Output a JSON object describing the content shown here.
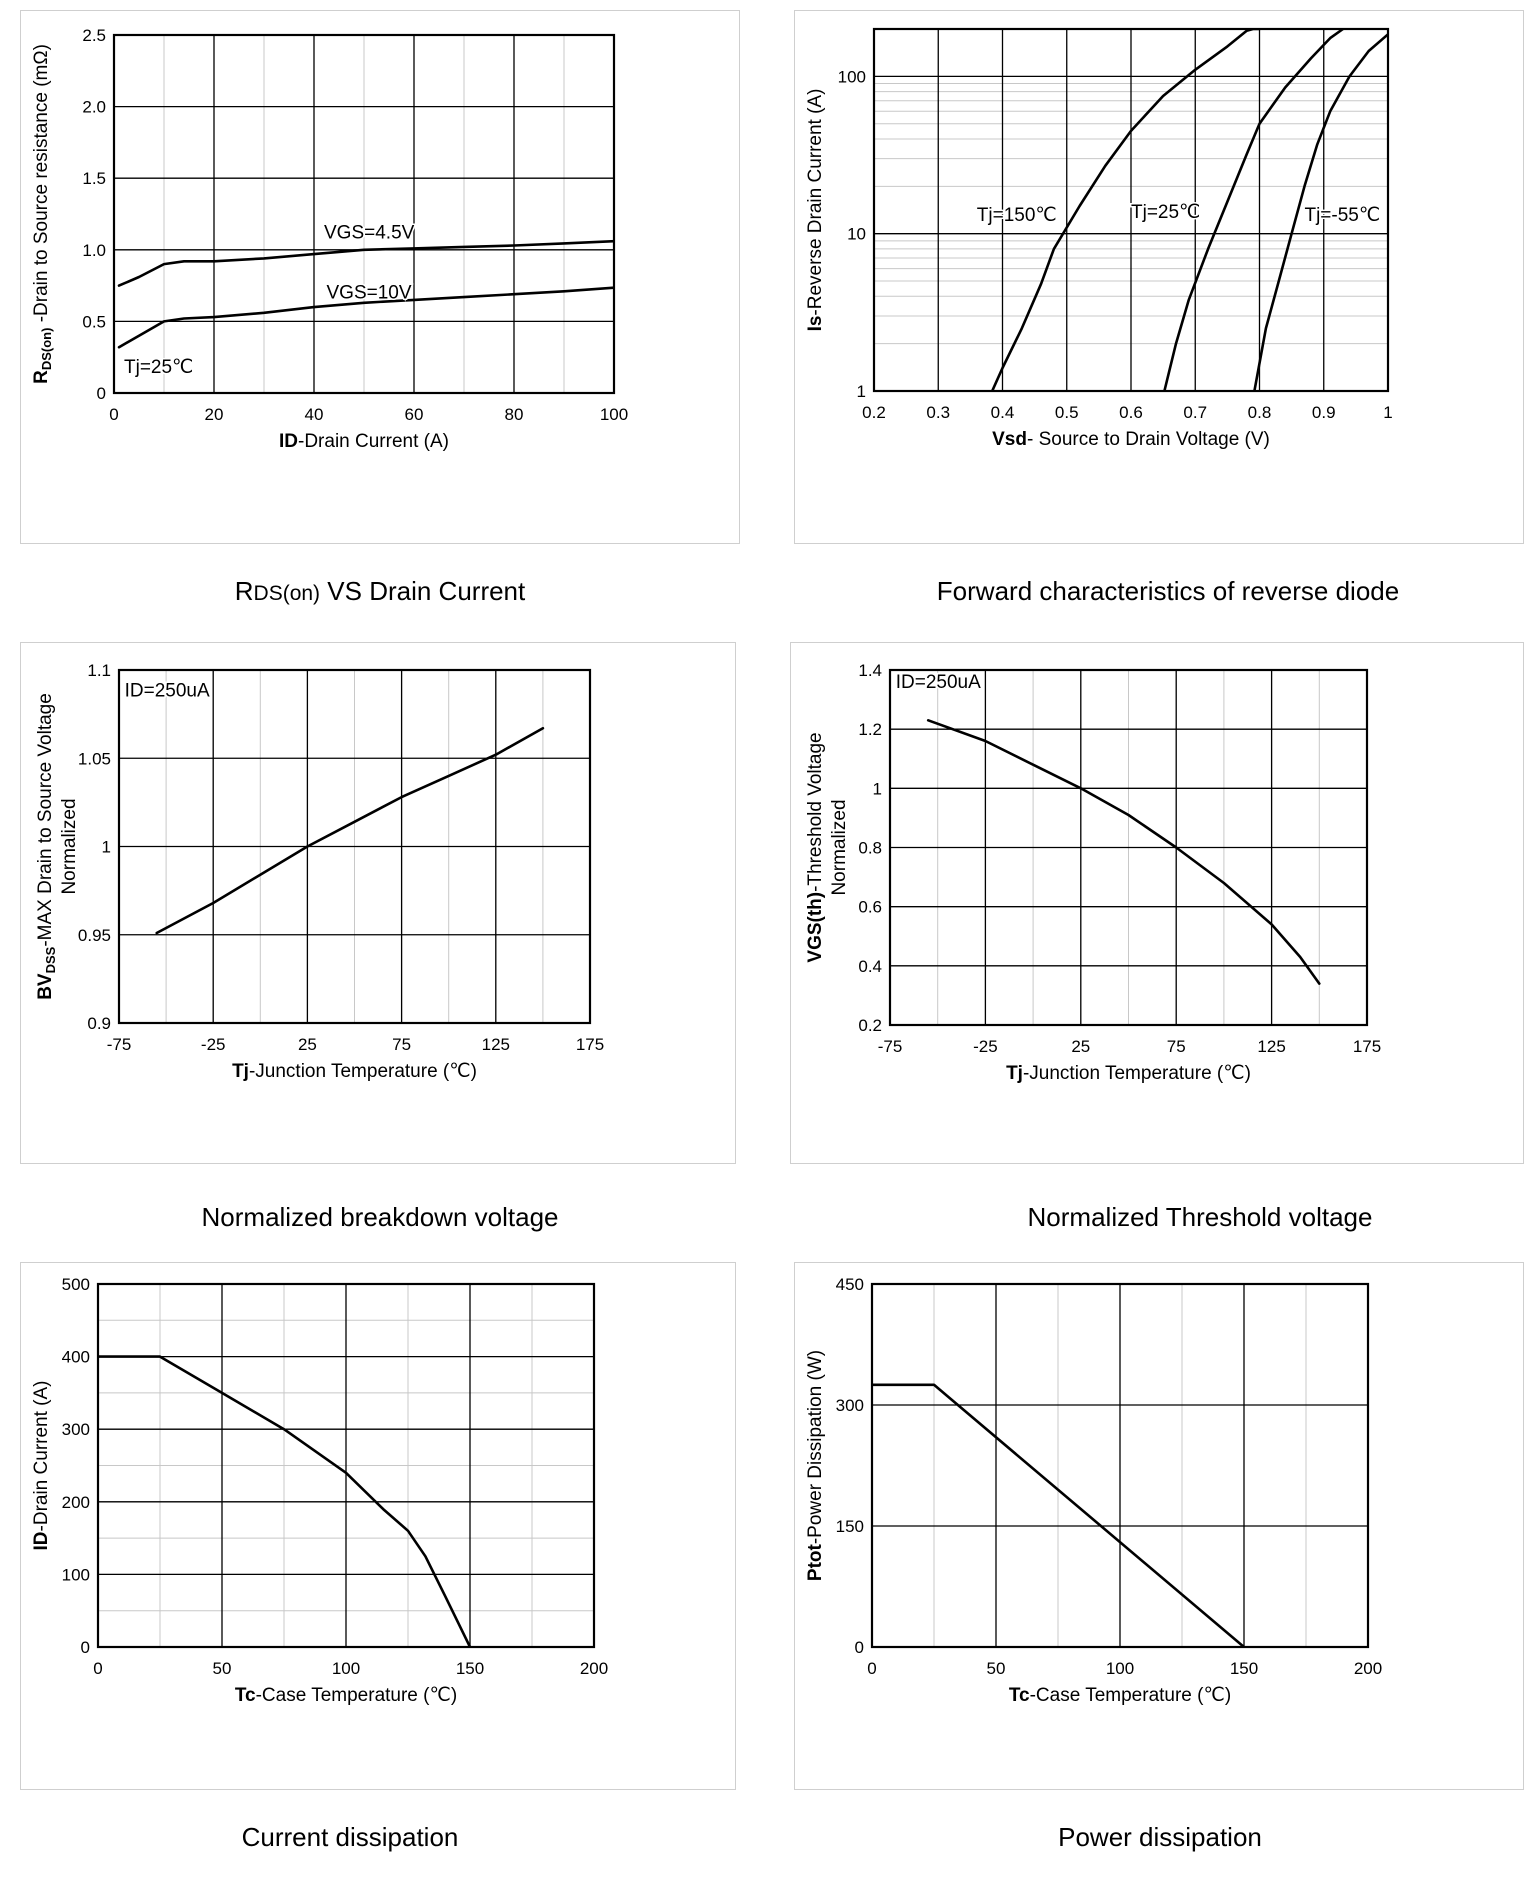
{
  "charts": [
    {
      "id": "rdson",
      "caption": "RDS(on) VS Drain Current",
      "caption_main": "R",
      "caption_sub": "DS(on)",
      "caption_rest": " VS Drain Current",
      "chart_data": {
        "type": "line",
        "xlabel": "ID-Drain Current (A)",
        "xlabel_bold": "ID",
        "xlabel_rest": "-Drain Current (A)",
        "ylabel": "RDS(on) -Drain to Source resistance (mΩ)",
        "ylabel_bold": "R",
        "ylabel_sub": "DS(on)",
        "ylabel_rest": " -Drain to Source resistance (mΩ)",
        "xlim": [
          0,
          100
        ],
        "ylim": [
          0,
          2.5
        ],
        "xticks": [
          0,
          20,
          40,
          60,
          80,
          100
        ],
        "xtick_labels": [
          "0",
          "20",
          "40",
          "60",
          "80",
          "100"
        ],
        "yticks": [
          0,
          0.5,
          1.0,
          1.5,
          2.0,
          2.5
        ],
        "ytick_labels": [
          "0",
          "0.5",
          "1.0",
          "1.5",
          "2.0",
          "2.5"
        ],
        "minor_x": 10,
        "series": [
          {
            "name": "VGS=4.5V",
            "x": [
              1,
              5,
              10,
              14,
              20,
              30,
              40,
              50,
              60,
              70,
              80,
              90,
              100
            ],
            "y": [
              0.75,
              0.81,
              0.9,
              0.92,
              0.92,
              0.94,
              0.97,
              1.0,
              1.01,
              1.02,
              1.03,
              1.045,
              1.06
            ]
          },
          {
            "name": "VGS=10V",
            "x": [
              1,
              5,
              10,
              14,
              20,
              30,
              40,
              50,
              60,
              70,
              80,
              90,
              100
            ],
            "y": [
              0.32,
              0.4,
              0.5,
              0.52,
              0.53,
              0.56,
              0.6,
              0.63,
              0.65,
              0.67,
              0.69,
              0.71,
              0.735
            ]
          }
        ],
        "annotations": [
          {
            "text": "VGS=4.5V",
            "x": 42,
            "y": 1.08
          },
          {
            "text": "VGS=10V",
            "x": 42.5,
            "y": 0.66
          },
          {
            "text": "Tj=25℃",
            "x": 2,
            "y": 0.14
          }
        ]
      }
    },
    {
      "id": "diode",
      "caption": "Forward characteristics of reverse diode",
      "chart_data": {
        "type": "line",
        "yscale": "log",
        "xlabel": "Vsd- Source to Drain Voltage (V)",
        "xlabel_bold": "Vsd",
        "xlabel_rest": "- Source to Drain Voltage (V)",
        "ylabel": "Is-Reverse Drain Current (A)",
        "ylabel_bold": "Is",
        "ylabel_rest": "-Reverse  Drain Current (A)",
        "xlim": [
          0.2,
          1.0
        ],
        "ylim": [
          1,
          200
        ],
        "xticks": [
          0.2,
          0.3,
          0.4,
          0.5,
          0.6,
          0.7,
          0.8,
          0.9,
          1.0
        ],
        "xtick_labels": [
          "0.2",
          "0.3",
          "0.4",
          "0.5",
          "0.6",
          "0.7",
          "0.8",
          "0.9",
          "1"
        ],
        "yticks": [
          1,
          10,
          100
        ],
        "ytick_labels": [
          "1",
          "10",
          "100"
        ],
        "series": [
          {
            "name": "Tj=150℃",
            "x": [
              0.384,
              0.4,
              0.43,
              0.46,
              0.48,
              0.52,
              0.56,
              0.6,
              0.65,
              0.7,
              0.75,
              0.78,
              0.79,
              0.8
            ],
            "y": [
              1,
              1.4,
              2.5,
              4.8,
              8,
              15,
              27,
              45,
              75,
              110,
              155,
              195,
              200,
              200
            ]
          },
          {
            "name": "Tj=25℃",
            "x": [
              0.652,
              0.67,
              0.69,
              0.72,
              0.75,
              0.78,
              0.8,
              0.84,
              0.88,
              0.91,
              0.93
            ],
            "y": [
              1,
              2,
              3.8,
              8,
              16,
              32,
              50,
              85,
              130,
              175,
              200
            ]
          },
          {
            "name": "Tj=-55℃",
            "x": [
              0.792,
              0.81,
              0.83,
              0.85,
              0.87,
              0.89,
              0.91,
              0.94,
              0.97,
              1.0
            ],
            "y": [
              1,
              2.5,
              5,
              10,
              20,
              37,
              60,
              100,
              145,
              185
            ]
          }
        ],
        "annotations": [
          {
            "text": "Tj=150℃",
            "x": 0.36,
            "y": 12
          },
          {
            "text": "Tj=25℃",
            "x": 0.6,
            "y": 12.6
          },
          {
            "text": "Tj=-55℃",
            "x": 0.87,
            "y": 12
          }
        ]
      }
    },
    {
      "id": "bvdss",
      "caption": "Normalized breakdown voltage",
      "chart_data": {
        "type": "line",
        "xlabel": "Tj-Junction Temperature (℃)",
        "xlabel_bold": "Tj",
        "xlabel_rest": "-Junction  Temperature  (℃)",
        "ylabel": "BVDSS-MAX Drain to Source Voltage Normalized",
        "ylabel_bold": "BV",
        "ylabel_sub": "DSS",
        "ylabel_rest": "-MAX Drain to Source Voltage",
        "ylabel_line2": "Normalized",
        "xlim": [
          -75,
          175
        ],
        "ylim": [
          0.9,
          1.1
        ],
        "xticks": [
          -75,
          -25,
          25,
          75,
          125,
          175
        ],
        "xtick_labels": [
          "-75",
          "-25",
          "25",
          "75",
          "125",
          "175"
        ],
        "yticks": [
          0.9,
          0.95,
          1.0,
          1.05,
          1.1
        ],
        "ytick_labels": [
          "0.9",
          "0.95",
          "1",
          "1.05",
          "1.1"
        ],
        "minor_x": 25,
        "series": [
          {
            "name": "BVDSS",
            "x": [
              -55,
              -25,
              0,
              25,
              50,
              75,
              100,
              125,
              150
            ],
            "y": [
              0.951,
              0.968,
              0.984,
              1.0,
              1.014,
              1.028,
              1.04,
              1.052,
              1.067
            ]
          }
        ],
        "annotations": [
          {
            "text": "ID=250uA",
            "x": -72,
            "y": 1.085
          }
        ]
      }
    },
    {
      "id": "vth",
      "caption": "Normalized Threshold voltage",
      "chart_data": {
        "type": "line",
        "xlabel": "Tj-Junction Temperature (℃)",
        "xlabel_bold": "Tj",
        "xlabel_rest": "-Junction  Temperature  (℃)",
        "ylabel": "VGS(th)-Threshold Voltage Normalized",
        "ylabel_bold": "VGS(th)",
        "ylabel_rest": "-Threshold  Voltage",
        "ylabel_line2": "Normalized",
        "xlim": [
          -75,
          175
        ],
        "ylim": [
          0.2,
          1.4
        ],
        "xticks": [
          -75,
          -25,
          25,
          75,
          125,
          175
        ],
        "xtick_labels": [
          "-75",
          "-25",
          "25",
          "75",
          "125",
          "175"
        ],
        "yticks": [
          0.2,
          0.4,
          0.6,
          0.8,
          1.0,
          1.2,
          1.4
        ],
        "ytick_labels": [
          "0.2",
          "0.4",
          "0.6",
          "0.8",
          "1",
          "1.2",
          "1.4"
        ],
        "minor_x": 25,
        "series": [
          {
            "name": "VGS(th)",
            "x": [
              -55,
              -25,
              0,
              25,
              50,
              75,
              100,
              125,
              140,
              150
            ],
            "y": [
              1.23,
              1.16,
              1.08,
              1.0,
              0.91,
              0.8,
              0.68,
              0.54,
              0.43,
              0.34
            ]
          }
        ],
        "annotations": [
          {
            "text": "ID=250uA",
            "x": -72,
            "y": 1.34
          }
        ]
      }
    },
    {
      "id": "current",
      "caption": "Current dissipation",
      "chart_data": {
        "type": "line",
        "xlabel": "Tc-Case Temperature (℃)",
        "xlabel_bold": "Tc",
        "xlabel_rest": "-Case Temperature  (℃)",
        "ylabel": "ID-Drain Current (A)",
        "ylabel_bold": "ID",
        "ylabel_rest": "-Drain Current (A)",
        "xlim": [
          0,
          200
        ],
        "ylim": [
          0,
          500
        ],
        "xticks": [
          0,
          50,
          100,
          150,
          200
        ],
        "xtick_labels": [
          "0",
          "50",
          "100",
          "150",
          "200"
        ],
        "yticks": [
          0,
          100,
          200,
          300,
          400,
          500
        ],
        "ytick_labels": [
          "0",
          "100",
          "200",
          "300",
          "400",
          "500"
        ],
        "minor_x": 25,
        "minor_y": 50,
        "series": [
          {
            "name": "ID",
            "x": [
              0,
              25,
              50,
              75,
              100,
              115,
              125,
              132,
              140,
              145,
              150
            ],
            "y": [
              400,
              400,
              350,
              300,
              240,
              190,
              160,
              125,
              70,
              35,
              0
            ]
          }
        ],
        "annotations": []
      }
    },
    {
      "id": "power",
      "caption": "Power dissipation",
      "chart_data": {
        "type": "line",
        "xlabel": "Tc-Case Temperature (℃)",
        "xlabel_bold": "Tc",
        "xlabel_rest": "-Case Temperature  (℃)",
        "ylabel": "Ptot-Power Dissipation (W)",
        "ylabel_bold": "Ptot",
        "ylabel_rest": "-Power Dissipation (W)",
        "xlim": [
          0,
          200
        ],
        "ylim": [
          0,
          450
        ],
        "xticks": [
          0,
          50,
          100,
          150,
          200
        ],
        "xtick_labels": [
          "0",
          "50",
          "100",
          "150",
          "200"
        ],
        "yticks": [
          0,
          150,
          300,
          450
        ],
        "ytick_labels": [
          "0",
          "150",
          "300",
          "450"
        ],
        "minor_x": 25,
        "series": [
          {
            "name": "Ptot",
            "x": [
              0,
              25,
              150
            ],
            "y": [
              325,
              325,
              0
            ]
          }
        ],
        "annotations": []
      }
    }
  ]
}
